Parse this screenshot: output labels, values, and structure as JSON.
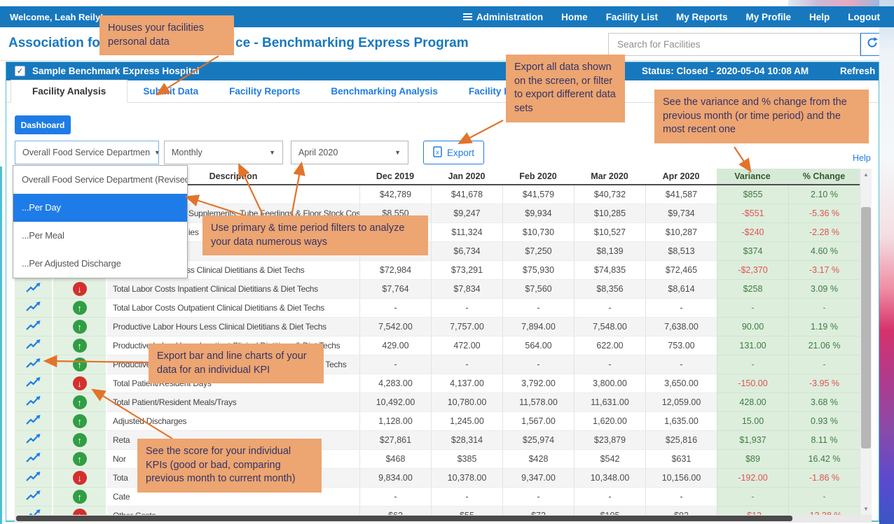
{
  "navbar": {
    "welcome": "Welcome, Leah Reily!",
    "items": [
      {
        "id": "administration",
        "label": "Administration",
        "icon": "hamburger-icon"
      },
      {
        "id": "home",
        "label": "Home"
      },
      {
        "id": "facility-list",
        "label": "Facility List"
      },
      {
        "id": "my-reports",
        "label": "My Reports"
      },
      {
        "id": "my-profile",
        "label": "My Profile"
      },
      {
        "id": "help",
        "label": "Help"
      },
      {
        "id": "logout",
        "label": "Logout"
      }
    ]
  },
  "header": {
    "title_part1": "Association for",
    "title_part2": "ce - Benchmarking Express Program",
    "search_placeholder": "Search for Facilities",
    "refresh_icon": "refresh-icon"
  },
  "facility_bar": {
    "checkbox_checked": true,
    "check_glyph": "✓",
    "name": "Sample Benchmark Express Hospital",
    "status": "Status: Closed - 2020-05-04 10:08 AM",
    "refresh_label": "Refresh"
  },
  "tabs": [
    {
      "label": "Facility Analysis",
      "active": true
    },
    {
      "label": "Submit Data",
      "active": false
    },
    {
      "label": "Facility Reports",
      "active": false
    },
    {
      "label": "Benchmarking Analysis",
      "active": false
    },
    {
      "label": "Facility Profile",
      "active": false
    }
  ],
  "dashboard_button_label": "Dashboard",
  "filters": {
    "primary_select_value": "Overall Food Service Departmen",
    "period_select_value": "Monthly",
    "month_select_value": "April 2020",
    "export_button_label": "Export",
    "export_icon": "excel-file-icon",
    "caret_glyph": "▼"
  },
  "primary_dropdown": {
    "open": true,
    "options": [
      {
        "label": "Overall Food Service Department (Revised)",
        "highlighted": false
      },
      {
        "label": "...Per Day",
        "highlighted": true
      },
      {
        "label": "...Per Meal",
        "highlighted": false
      },
      {
        "label": "...Per Adjusted Discharge",
        "highlighted": false
      }
    ]
  },
  "help_link_label": "Help",
  "table": {
    "columns": [
      "Description",
      "Dec 2019",
      "Jan 2020",
      "Feb 2020",
      "Mar 2020",
      "Apr 2020",
      "Variance",
      "% Change"
    ],
    "icon_columns": [
      "chart-icon",
      "score-icon"
    ],
    "rows": [
      {
        "score": null,
        "description": "",
        "indent": false,
        "values": [
          "$42,789",
          "$41,678",
          "$41,579",
          "$40,732",
          "$41,587"
        ],
        "variance": "$855",
        "change": "2.10 %",
        "negative": false
      },
      {
        "score": null,
        "description": "Supplements, Tube Feedings & Floor Stock Cost",
        "indent": true,
        "values": [
          "$8,550",
          "$9,247",
          "$9,934",
          "$10,285",
          "$9,734"
        ],
        "variance": "-$551",
        "change": "-5.36 %",
        "negative": true
      },
      {
        "score": null,
        "description": "ies",
        "indent": true,
        "values": [
          "",
          "$11,324",
          "$10,730",
          "$10,527",
          "$10,287"
        ],
        "variance": "-$240",
        "change": "-2.28 %",
        "negative": true
      },
      {
        "score": null,
        "description": "",
        "indent": false,
        "values": [
          "",
          "$6,734",
          "$7,250",
          "$8,139",
          "$8,513"
        ],
        "variance": "$374",
        "change": "4.60 %",
        "negative": false
      },
      {
        "score": "up",
        "description": "Total Labor Costs Less Clinical Dietitians & Diet Techs",
        "indent": false,
        "values": [
          "$72,984",
          "$73,291",
          "$75,930",
          "$74,835",
          "$72,465"
        ],
        "variance": "-$2,370",
        "change": "-3.17 %",
        "negative": true
      },
      {
        "score": "down",
        "description": "Total Labor Costs Inpatient Clinical Dietitians & Diet Techs",
        "indent": false,
        "values": [
          "$7,764",
          "$7,834",
          "$7,560",
          "$8,356",
          "$8,614"
        ],
        "variance": "$258",
        "change": "3.09 %",
        "negative": false
      },
      {
        "score": "up",
        "description": "Total Labor Costs Outpatient Clinical Dietitians & Diet Techs",
        "indent": false,
        "values": [
          "-",
          "-",
          "-",
          "-",
          "-"
        ],
        "variance": "-",
        "change": "-",
        "negative": false
      },
      {
        "score": "up",
        "description": "Productive Labor Hours Less Clinical Dietitians & Diet Techs",
        "indent": false,
        "values": [
          "7,542.00",
          "7,757.00",
          "7,894.00",
          "7,548.00",
          "7,638.00"
        ],
        "variance": "90.00",
        "change": "1.19 %",
        "negative": false
      },
      {
        "score": "up",
        "description": "Productive Labor Hours Inpatient Clinical Dietitians & Diet Techs",
        "indent": false,
        "values": [
          "429.00",
          "472.00",
          "564.00",
          "622.00",
          "753.00"
        ],
        "variance": "131.00",
        "change": "21.06 %",
        "negative": false
      },
      {
        "score": "up",
        "description": "Productive Labor Hours Outpatient Clinical Dietitians & Diet Techs",
        "indent": false,
        "values": [
          "-",
          "-",
          "-",
          "-",
          "-"
        ],
        "variance": "-",
        "change": "-",
        "negative": false
      },
      {
        "score": "down",
        "description": "Total Patient/Resident Days",
        "indent": false,
        "values": [
          "4,283.00",
          "4,137.00",
          "3,792.00",
          "3,800.00",
          "3,650.00"
        ],
        "variance": "-150.00",
        "change": "-3.95 %",
        "negative": true
      },
      {
        "score": "up",
        "description": "Total Patient/Resident Meals/Trays",
        "indent": false,
        "values": [
          "10,492.00",
          "10,780.00",
          "11,578.00",
          "11,631.00",
          "12,059.00"
        ],
        "variance": "428.00",
        "change": "3.68 %",
        "negative": false
      },
      {
        "score": "up",
        "description": "Adjusted Discharges",
        "indent": false,
        "values": [
          "1,128.00",
          "1,245.00",
          "1,567.00",
          "1,620.00",
          "1,635.00"
        ],
        "variance": "15.00",
        "change": "0.93 %",
        "negative": false
      },
      {
        "score": "up",
        "description": "Reta",
        "indent": false,
        "values": [
          "$27,861",
          "$28,314",
          "$25,974",
          "$23,879",
          "$25,816"
        ],
        "variance": "$1,937",
        "change": "8.11 %",
        "negative": false
      },
      {
        "score": "up",
        "description": "Nor",
        "indent": false,
        "values": [
          "$468",
          "$385",
          "$428",
          "$542",
          "$631"
        ],
        "variance": "$89",
        "change": "16.42 %",
        "negative": false
      },
      {
        "score": "down",
        "description": "Tota",
        "indent": false,
        "values": [
          "9,834.00",
          "10,378.00",
          "9,347.00",
          "10,348.00",
          "10,156.00"
        ],
        "variance": "-192.00",
        "change": "-1.86 %",
        "negative": true
      },
      {
        "score": "up",
        "description": "Cate",
        "indent": false,
        "values": [
          "-",
          "-",
          "-",
          "-",
          "-"
        ],
        "variance": "-",
        "change": "-",
        "negative": false
      },
      {
        "score": "down",
        "description": "Other Costs",
        "indent": false,
        "values": [
          "$62",
          "$55",
          "$72",
          "$105",
          "$92"
        ],
        "variance": "-$13",
        "change": "-12.38 %",
        "negative": true
      }
    ]
  },
  "callouts": [
    {
      "id": "personal-data",
      "text": "Houses your facilities personal data"
    },
    {
      "id": "export-data",
      "text": "Export all data shown on the screen, or filter to export different data sets"
    },
    {
      "id": "variance-change",
      "text": "See the variance and % change from the previous month (or time period) and the most recent one"
    },
    {
      "id": "filters",
      "text": "Use primary & time period filters to analyze your data numerous ways"
    },
    {
      "id": "export-charts",
      "text": "Export bar and line charts of your data for an individual KPI"
    },
    {
      "id": "kpi-score",
      "text": "See the score for your individual KPIs (good or bad, comparing previous month to current month)"
    }
  ],
  "colors": {
    "brand_blue": "#1878be",
    "accent_blue": "#1f7ce4",
    "panel_border_teal": "#57bfcf",
    "callout_bg": "#eda571",
    "callout_text": "#343467",
    "arrow_orange": "#e2732a",
    "green_column_bg": "#e3f1e3",
    "variance_column_bg": "#ddeedd",
    "positive_green": "#3f7a40",
    "negative_red": "#e05252",
    "score_up_green": "#2f9e44",
    "score_down_red": "#d32f2f"
  }
}
